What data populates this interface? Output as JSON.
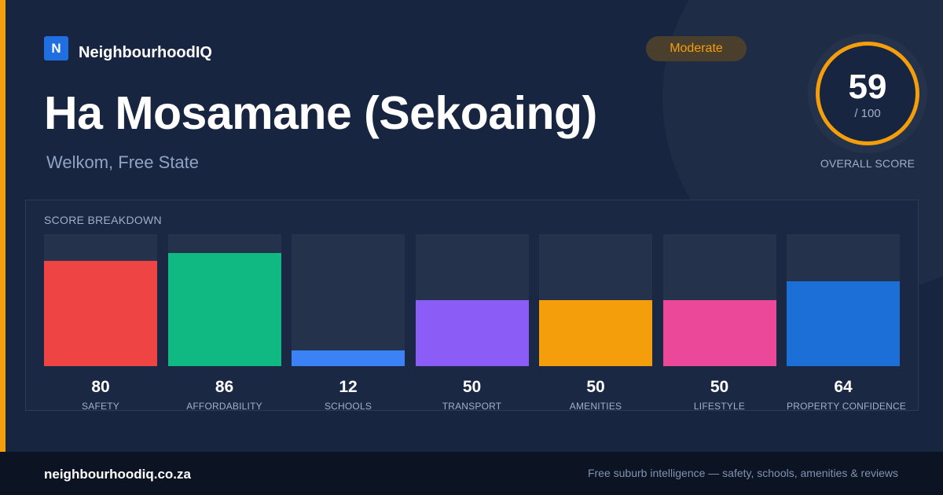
{
  "brand": {
    "logo_letter": "N",
    "name": "NeighbourhoodIQ"
  },
  "suburb": {
    "name": "Ha Mosamane (Sekoaing)",
    "location": "Welkom, Free State"
  },
  "rating": {
    "label": "Moderate",
    "color": "#f59e0b"
  },
  "overall": {
    "score": "59",
    "max": "/ 100",
    "caption": "OVERALL SCORE"
  },
  "breakdown": {
    "title": "SCORE BREAKDOWN",
    "items": [
      {
        "label": "SAFETY",
        "value": "80",
        "color": "#ef4444"
      },
      {
        "label": "AFFORDABILITY",
        "value": "86",
        "color": "#10b981"
      },
      {
        "label": "SCHOOLS",
        "value": "12",
        "color": "#3b82f6"
      },
      {
        "label": "TRANSPORT",
        "value": "50",
        "color": "#8b5cf6"
      },
      {
        "label": "AMENITIES",
        "value": "50",
        "color": "#f59e0b"
      },
      {
        "label": "LIFESTYLE",
        "value": "50",
        "color": "#ec4899"
      },
      {
        "label": "PROPERTY CONFIDENCE",
        "value": "64",
        "color": "#1d6fd8"
      }
    ]
  },
  "footer": {
    "domain": "neighbourhoodiq.co.za",
    "tagline": "Free suburb intelligence — safety, schools, amenities & reviews"
  }
}
